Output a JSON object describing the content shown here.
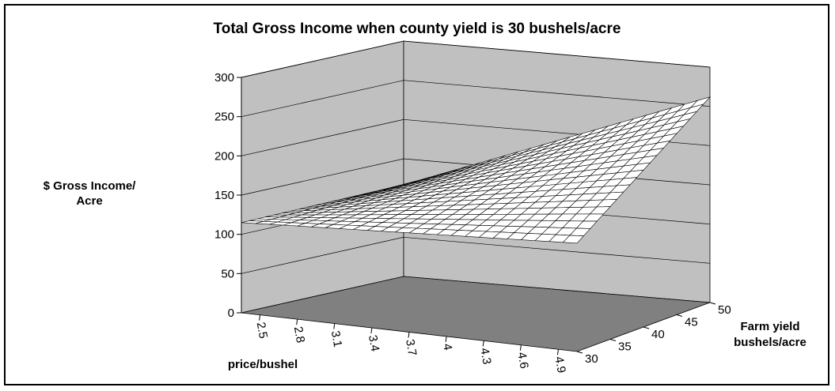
{
  "chart_data": {
    "type": "surface",
    "title": "Total Gross Income when county yield is 30 bushels/acre",
    "ylabel_line1": "$ Gross Income/",
    "ylabel_line2": "Acre",
    "xlabel": "price/bushel",
    "zlabel_line1": "Farm yield",
    "zlabel_line2": "bushels/acre",
    "y_ticks": [
      "0",
      "50",
      "100",
      "150",
      "200",
      "250",
      "300"
    ],
    "ylim": [
      0,
      300
    ],
    "x_ticks": [
      "2.5",
      "2.8",
      "3.1",
      "3.4",
      "3.7",
      "4",
      "4.3",
      "4.6",
      "4.9"
    ],
    "z_ticks": [
      "30",
      "35",
      "40",
      "45",
      "50"
    ],
    "price_range": [
      2.5,
      5.0
    ],
    "farm_yield_range": [
      30,
      50
    ],
    "surface_corners": [
      {
        "price": 2.5,
        "farm_yield": 30,
        "income": 115
      },
      {
        "price": 2.5,
        "farm_yield": 50,
        "income": 117
      },
      {
        "price": 5.0,
        "farm_yield": 30,
        "income": 138
      },
      {
        "price": 5.0,
        "farm_yield": 50,
        "income": 262
      }
    ],
    "colors": {
      "back_wall": "#c0c0c0",
      "floor": "#808080",
      "mesh_line": "#000000",
      "mesh_fill": "#ffffff"
    }
  }
}
